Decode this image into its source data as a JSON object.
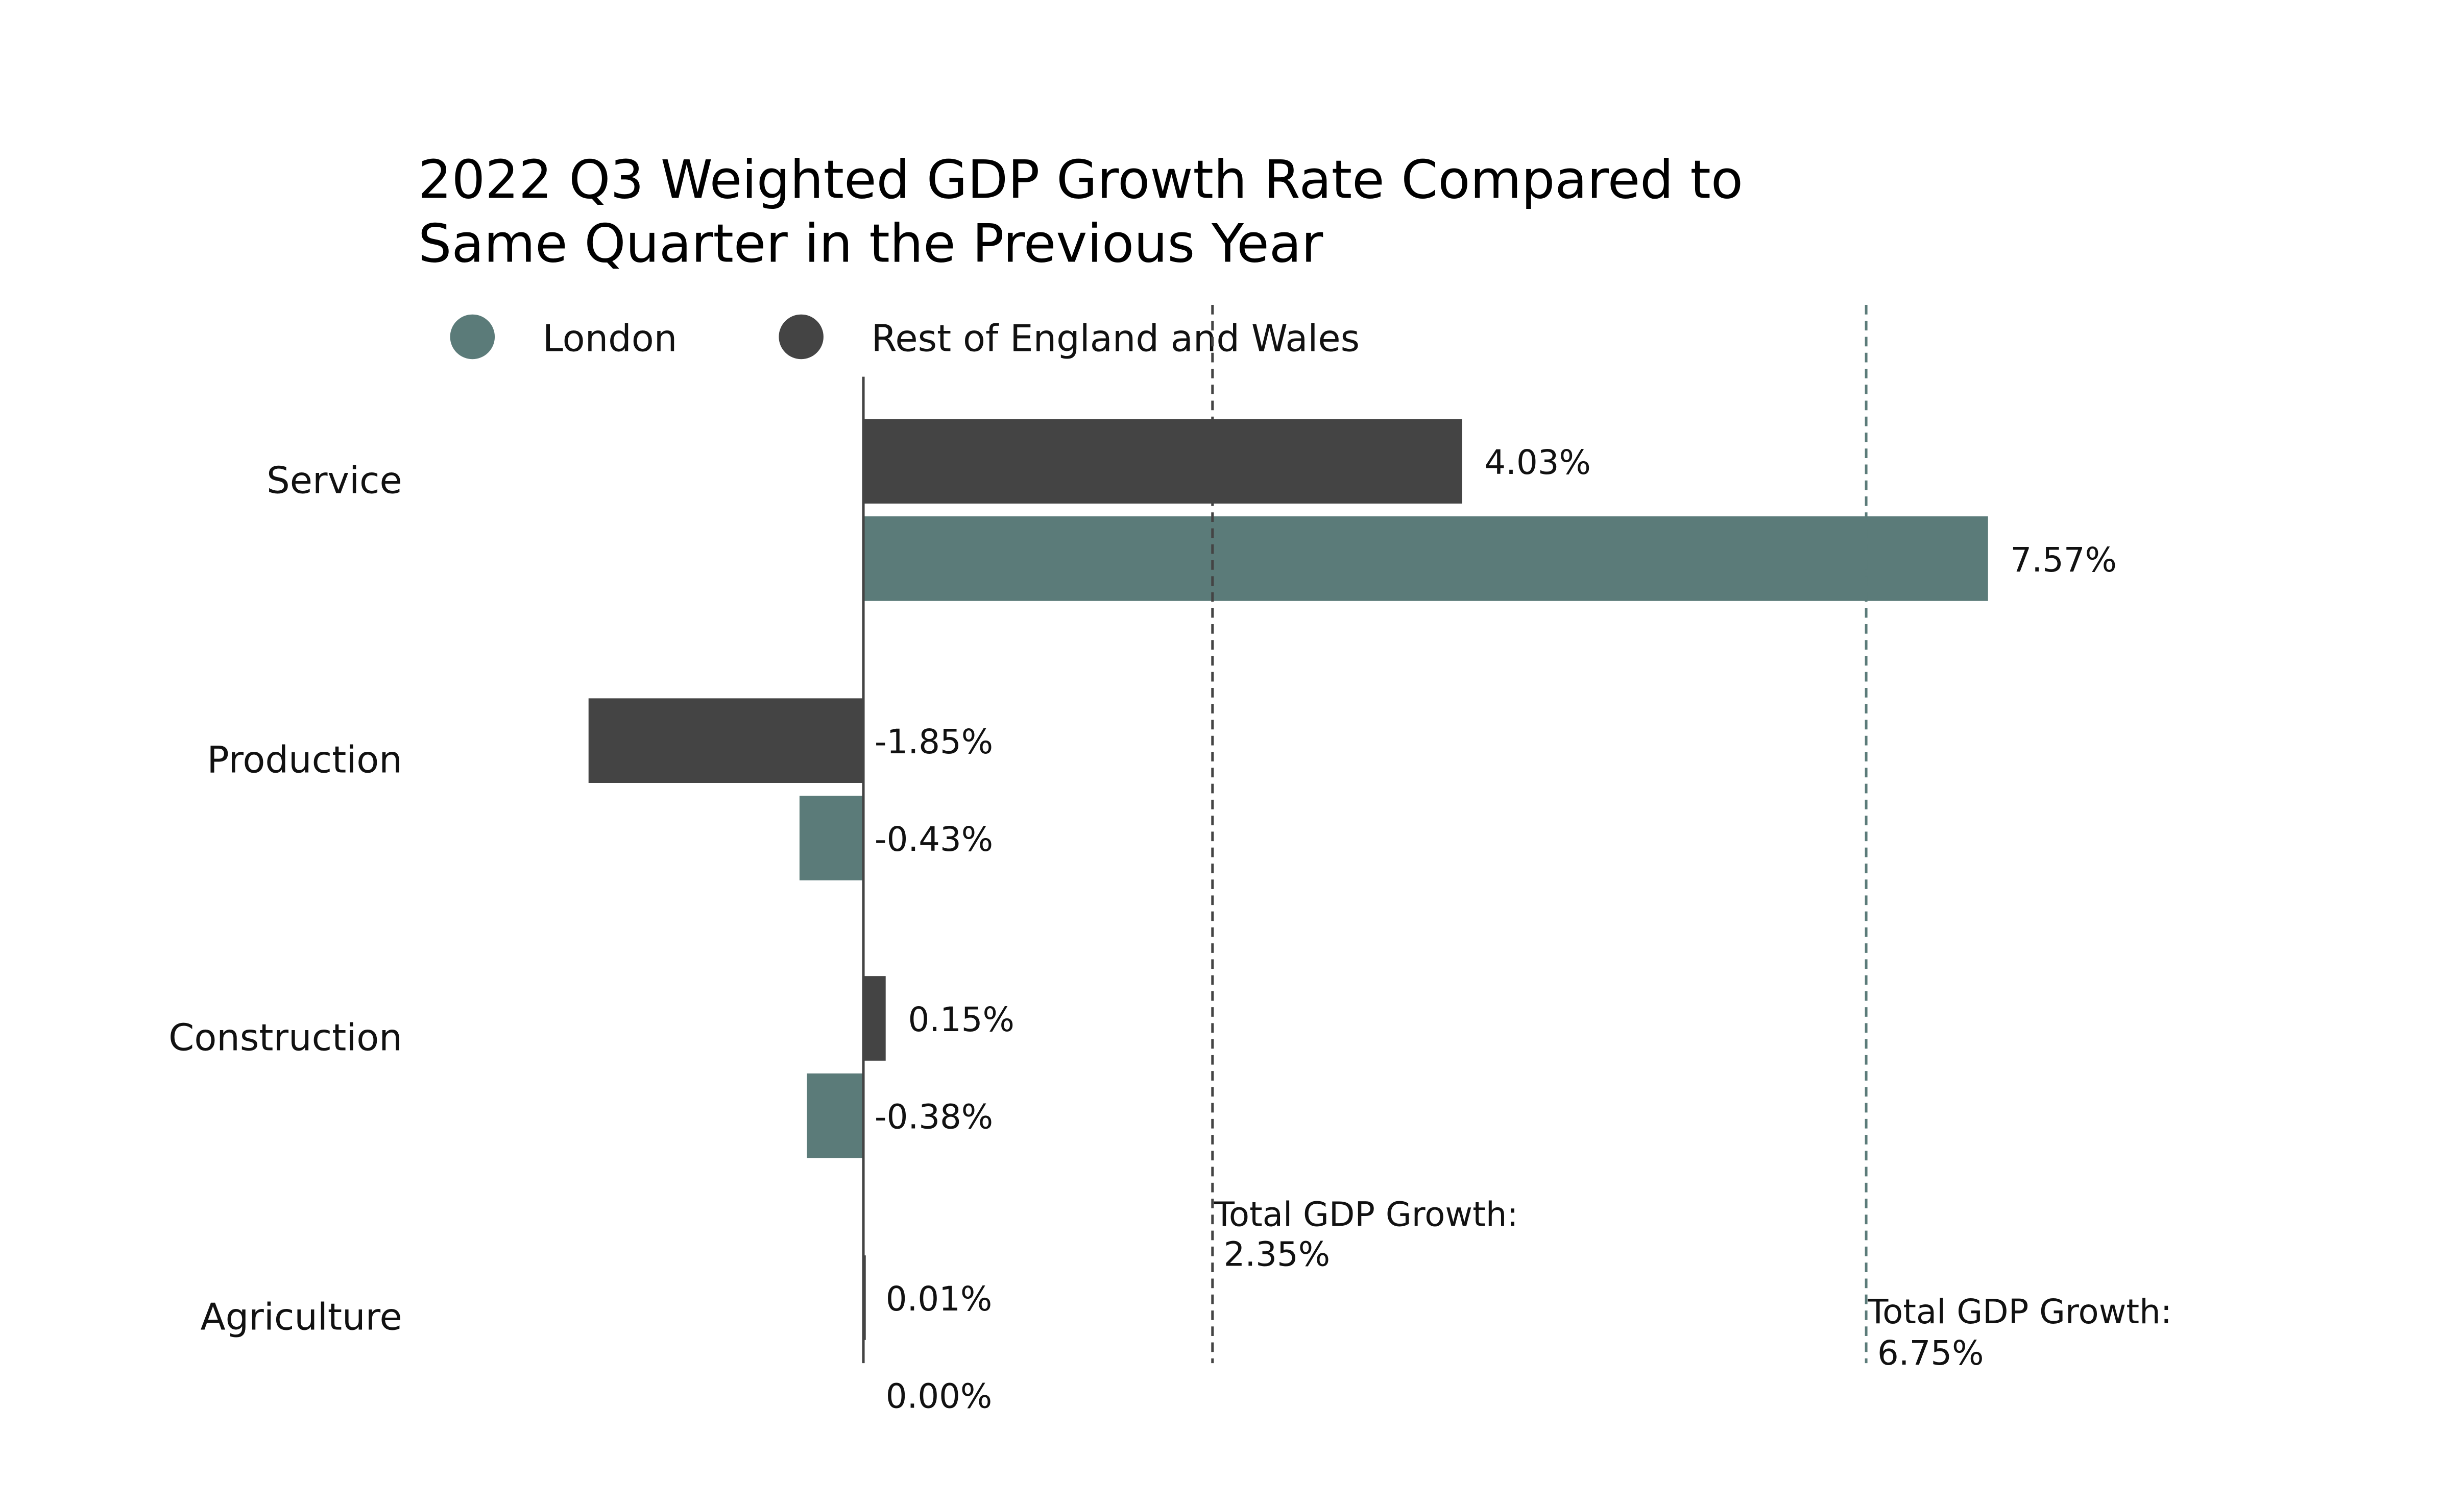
{
  "chart_data": {
    "type": "bar",
    "orientation": "horizontal",
    "title_lines": [
      "2022 Q3 Weighted GDP Growth Rate Compared to",
      "Same Quarter in the Previous Year"
    ],
    "categories": [
      "Service",
      "Production",
      "Construction",
      "Agriculture"
    ],
    "series": [
      {
        "name": "Rest of England and Wales",
        "color": "#444444",
        "values": [
          4.03,
          -1.85,
          0.15,
          0.01
        ],
        "labels": [
          "4.03%",
          "-1.85%",
          "0.15%",
          "0.01%"
        ]
      },
      {
        "name": "London",
        "color": "#5b7b79",
        "values": [
          7.57,
          -0.43,
          -0.38,
          0.0
        ],
        "labels": [
          "7.57%",
          "-0.43%",
          "-0.38%",
          "0.00%"
        ]
      }
    ],
    "legend": {
      "placement": "top-left",
      "order": [
        "London",
        "Rest of England and Wales"
      ]
    },
    "reference_lines": [
      {
        "series": "Rest of England and Wales",
        "value": 2.35,
        "label_line1": "Total GDP Growth:",
        "label_line2": "2.35%",
        "color": "#444444"
      },
      {
        "series": "London",
        "value": 6.75,
        "label_line1": "Total GDP Growth:",
        "label_line2": "6.75%",
        "color": "#5b7b79"
      }
    ],
    "xlim": [
      -3.0,
      10.0
    ],
    "grid": false,
    "axes_visible": false
  }
}
